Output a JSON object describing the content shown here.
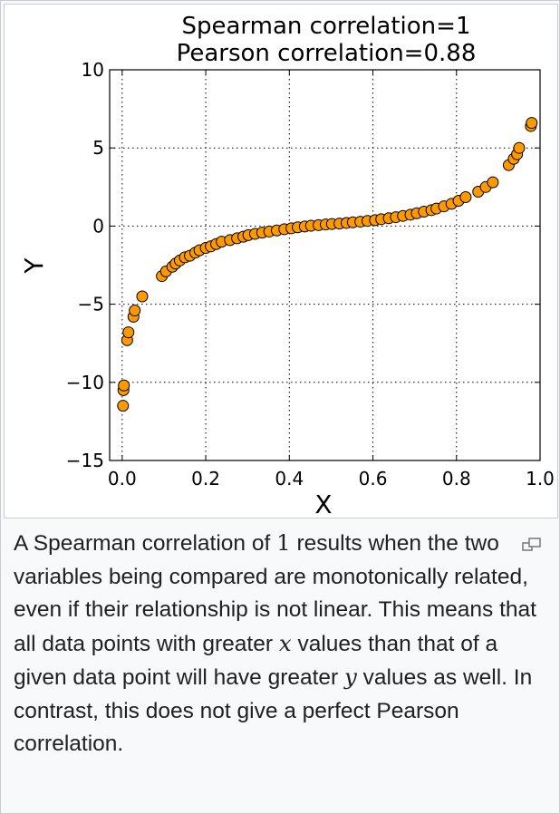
{
  "chart_data": {
    "type": "scatter",
    "title_lines": [
      "Spearman correlation=1",
      "Pearson correlation=0.88"
    ],
    "xlabel": "X",
    "ylabel": "Y",
    "xlim": [
      -0.03,
      1.0
    ],
    "ylim": [
      -15,
      10
    ],
    "xticks": [
      0.0,
      0.2,
      0.4,
      0.6,
      0.8,
      1.0
    ],
    "xtick_labels": [
      "0.0",
      "0.2",
      "0.4",
      "0.6",
      "0.8",
      "1.0"
    ],
    "yticks": [
      10,
      5,
      0,
      -5,
      -10,
      -15
    ],
    "ytick_labels": [
      "10",
      "5",
      "0",
      "−5",
      "−10",
      "−15"
    ],
    "grid": true,
    "marker_color": "#ff9900",
    "x": [
      0.002,
      0.003,
      0.004,
      0.012,
      0.015,
      0.027,
      0.03,
      0.048,
      0.095,
      0.105,
      0.12,
      0.128,
      0.138,
      0.15,
      0.162,
      0.175,
      0.185,
      0.2,
      0.212,
      0.225,
      0.238,
      0.258,
      0.275,
      0.29,
      0.302,
      0.318,
      0.335,
      0.352,
      0.37,
      0.388,
      0.405,
      0.42,
      0.437,
      0.452,
      0.47,
      0.487,
      0.502,
      0.52,
      0.537,
      0.552,
      0.57,
      0.587,
      0.605,
      0.62,
      0.638,
      0.655,
      0.672,
      0.69,
      0.705,
      0.722,
      0.74,
      0.752,
      0.77,
      0.788,
      0.805,
      0.822,
      0.852,
      0.87,
      0.887,
      0.925,
      0.937,
      0.945,
      0.95,
      0.978,
      0.98
    ],
    "y": [
      -11.5,
      -10.5,
      -10.2,
      -7.3,
      -6.8,
      -5.8,
      -5.4,
      -4.5,
      -3.2,
      -2.9,
      -2.6,
      -2.4,
      -2.2,
      -2.0,
      -1.9,
      -1.7,
      -1.55,
      -1.4,
      -1.3,
      -1.15,
      -1.0,
      -0.9,
      -0.78,
      -0.68,
      -0.58,
      -0.5,
      -0.42,
      -0.35,
      -0.28,
      -0.2,
      -0.14,
      -0.08,
      -0.03,
      0.02,
      0.06,
      0.1,
      0.13,
      0.16,
      0.2,
      0.24,
      0.28,
      0.33,
      0.38,
      0.44,
      0.5,
      0.57,
      0.65,
      0.73,
      0.82,
      0.92,
      1.02,
      1.12,
      1.26,
      1.42,
      1.62,
      1.85,
      2.2,
      2.5,
      2.8,
      3.9,
      4.3,
      4.6,
      5.0,
      6.4,
      6.6
    ]
  },
  "caption": {
    "seg1": "A Spearman correlation of ",
    "num": "1",
    "seg2": " results when the two variables being compared are monotonically related, even if their relationship is not linear. This means that all data points with greater ",
    "var_x": "x",
    "seg3": " values than that of a given data point will have greater ",
    "var_y": "y",
    "seg4": " values as well. In contrast, this does not give a perfect Pearson correlation."
  },
  "icons": {
    "magnify": "magnify-icon"
  }
}
